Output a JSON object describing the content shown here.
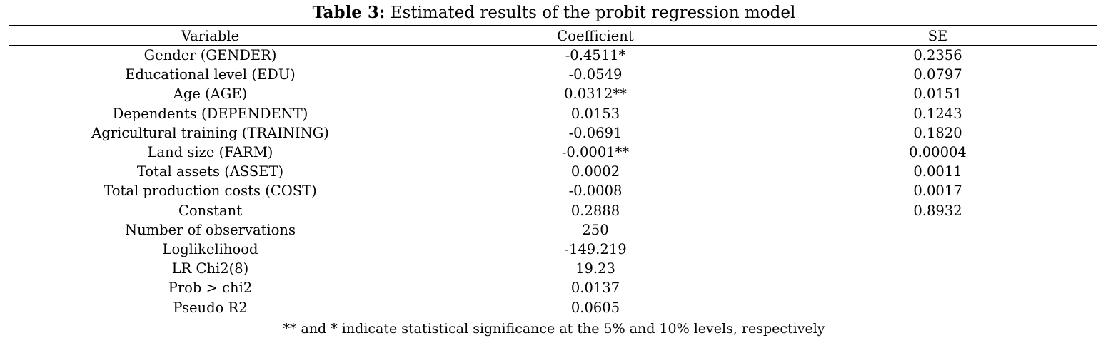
{
  "caption": {
    "label": "Table 3:",
    "text": "Estimated results of the probit regression model"
  },
  "header": {
    "variable": "Variable",
    "coefficient": "Coefficient",
    "se": "SE"
  },
  "rows": [
    {
      "variable": "Gender (GENDER)",
      "coefficient": "-0.4511*",
      "se": "0.2356"
    },
    {
      "variable": "Educational level (EDU)",
      "coefficient": "-0.0549",
      "se": "0.0797"
    },
    {
      "variable": "Age (AGE)",
      "coefficient": "0.0312**",
      "se": "0.0151"
    },
    {
      "variable": "Dependents (DEPENDENT)",
      "coefficient": "0.0153",
      "se": "0.1243"
    },
    {
      "variable": "Agricultural training (TRAINING)",
      "coefficient": "-0.0691",
      "se": "0.1820"
    },
    {
      "variable": "Land size (FARM)",
      "coefficient": "-0.0001**",
      "se": "0.00004"
    },
    {
      "variable": "Total assets (ASSET)",
      "coefficient": "0.0002",
      "se": "0.0011"
    },
    {
      "variable": "Total production costs (COST)",
      "coefficient": "-0.0008",
      "se": "0.0017"
    },
    {
      "variable": "Constant",
      "coefficient": "0.2888",
      "se": "0.8932"
    },
    {
      "variable": "Number of observations",
      "coefficient": "250",
      "se": ""
    },
    {
      "variable": "Loglikelihood",
      "coefficient": "-149.219",
      "se": ""
    },
    {
      "variable": "LR Chi2(8)",
      "coefficient": "19.23",
      "se": ""
    },
    {
      "variable": "Prob > chi2",
      "coefficient": "0.0137",
      "se": ""
    },
    {
      "variable": "Pseudo R2",
      "coefficient": "0.0605",
      "se": ""
    }
  ],
  "note": "** and * indicate statistical significance at the 5% and 10% levels, respectively"
}
